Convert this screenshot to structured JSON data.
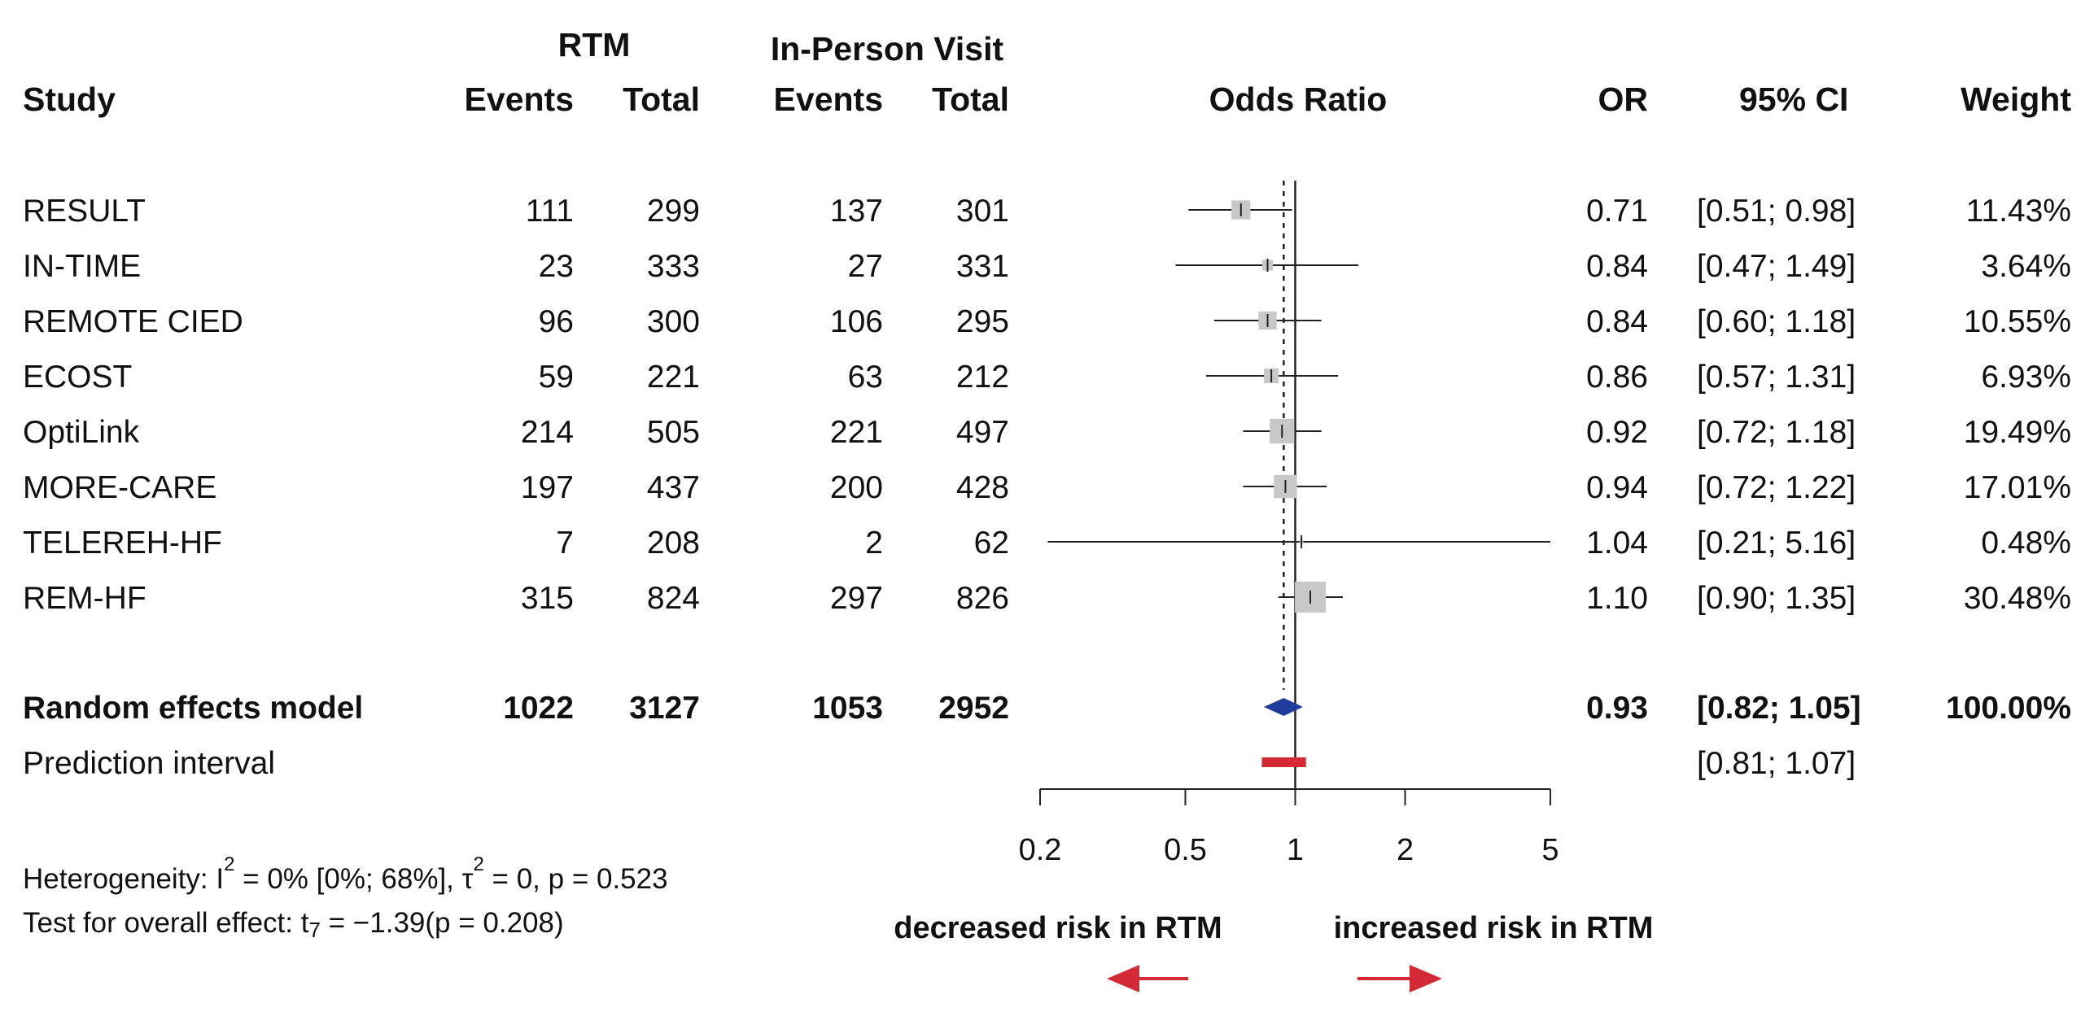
{
  "header": {
    "rtm_group": "RTM",
    "ipv_group": "In-Person Visit",
    "study": "Study",
    "events": "Events",
    "total": "Total",
    "odds_ratio": "Odds Ratio",
    "or": "OR",
    "ci": "95% CI",
    "weight": "Weight"
  },
  "studies": [
    {
      "name": "RESULT",
      "rtm_events": "111",
      "rtm_total": "299",
      "ipv_events": "137",
      "ipv_total": "301",
      "or": "0.71",
      "ci": "[0.51; 0.98]",
      "weight": "11.43%"
    },
    {
      "name": "IN-TIME",
      "rtm_events": "23",
      "rtm_total": "333",
      "ipv_events": "27",
      "ipv_total": "331",
      "or": "0.84",
      "ci": "[0.47; 1.49]",
      "weight": "3.64%"
    },
    {
      "name": "REMOTE CIED",
      "rtm_events": "96",
      "rtm_total": "300",
      "ipv_events": "106",
      "ipv_total": "295",
      "or": "0.84",
      "ci": "[0.60; 1.18]",
      "weight": "10.55%"
    },
    {
      "name": "ECOST",
      "rtm_events": "59",
      "rtm_total": "221",
      "ipv_events": "63",
      "ipv_total": "212",
      "or": "0.86",
      "ci": "[0.57; 1.31]",
      "weight": "6.93%"
    },
    {
      "name": "OptiLink",
      "rtm_events": "214",
      "rtm_total": "505",
      "ipv_events": "221",
      "ipv_total": "497",
      "or": "0.92",
      "ci": "[0.72; 1.18]",
      "weight": "19.49%"
    },
    {
      "name": "MORE-CARE",
      "rtm_events": "197",
      "rtm_total": "437",
      "ipv_events": "200",
      "ipv_total": "428",
      "or": "0.94",
      "ci": "[0.72; 1.22]",
      "weight": "17.01%"
    },
    {
      "name": "TELEREH-HF",
      "rtm_events": "7",
      "rtm_total": "208",
      "ipv_events": "2",
      "ipv_total": "62",
      "or": "1.04",
      "ci": "[0.21; 5.16]",
      "weight": "0.48%"
    },
    {
      "name": "REM-HF",
      "rtm_events": "315",
      "rtm_total": "824",
      "ipv_events": "297",
      "ipv_total": "826",
      "or": "1.10",
      "ci": "[0.90; 1.35]",
      "weight": "30.48%"
    }
  ],
  "pooled": {
    "name": "Random effects model",
    "rtm_events": "1022",
    "rtm_total": "3127",
    "ipv_events": "1053",
    "ipv_total": "2952",
    "or": "0.93",
    "ci": "[0.82; 1.05]",
    "weight": "100.00%"
  },
  "prediction": {
    "name": "Prediction interval",
    "ci": "[0.81; 1.07]"
  },
  "footer": {
    "het_prefix": "Heterogeneity: I",
    "het_i2": "2",
    "het_mid": " = 0% [0%; 68%], τ",
    "het_tau2": "2",
    "het_suffix": " = 0, p = 0.523",
    "test_prefix": "Test for overall effect: t",
    "test_sub": "7",
    "test_suffix": " = −1.39(p = 0.208)"
  },
  "direction": {
    "left": "decreased risk in RTM",
    "right": "increased risk in RTM"
  },
  "colors": {
    "square": "#c8c8c8",
    "diamond": "#1f3b9c",
    "prediction": "#d42a36",
    "arrow": "#d42a36",
    "line": "#222222"
  },
  "chart_data": {
    "type": "forest",
    "scale": "log",
    "xlabel": "Odds Ratio",
    "xlim": [
      0.2,
      5
    ],
    "ticks": [
      "0.2",
      "0.5",
      "1",
      "2",
      "5"
    ],
    "tick_values": [
      0.2,
      0.5,
      1,
      2,
      5
    ],
    "reference_line": 1,
    "pooled_line": 0.93,
    "series": [
      {
        "label": "RESULT",
        "or": 0.71,
        "lo": 0.51,
        "hi": 0.98,
        "weight": 11.43
      },
      {
        "label": "IN-TIME",
        "or": 0.84,
        "lo": 0.47,
        "hi": 1.49,
        "weight": 3.64
      },
      {
        "label": "REMOTE CIED",
        "or": 0.84,
        "lo": 0.6,
        "hi": 1.18,
        "weight": 10.55
      },
      {
        "label": "ECOST",
        "or": 0.86,
        "lo": 0.57,
        "hi": 1.31,
        "weight": 6.93
      },
      {
        "label": "OptiLink",
        "or": 0.92,
        "lo": 0.72,
        "hi": 1.18,
        "weight": 19.49
      },
      {
        "label": "MORE-CARE",
        "or": 0.94,
        "lo": 0.72,
        "hi": 1.22,
        "weight": 17.01
      },
      {
        "label": "TELEREH-HF",
        "or": 1.04,
        "lo": 0.21,
        "hi": 5.16,
        "weight": 0.48
      },
      {
        "label": "REM-HF",
        "or": 1.1,
        "lo": 0.9,
        "hi": 1.35,
        "weight": 30.48
      }
    ],
    "pooled": {
      "label": "Random effects model",
      "or": 0.93,
      "lo": 0.82,
      "hi": 1.05
    },
    "prediction_interval": {
      "lo": 0.81,
      "hi": 1.07
    }
  }
}
